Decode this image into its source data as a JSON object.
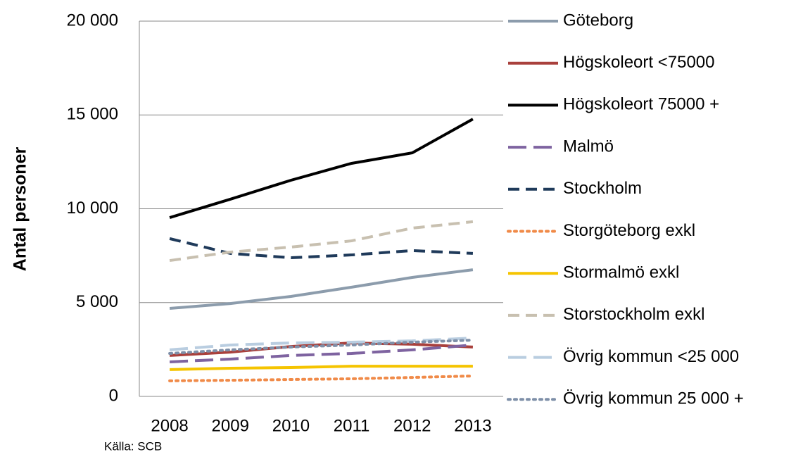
{
  "chart_data": {
    "type": "line",
    "y_axis_label": "Antal personer",
    "source": "Källa: SCB",
    "categories": [
      "2008",
      "2009",
      "2010",
      "2011",
      "2012",
      "2013"
    ],
    "ylim": [
      0,
      20000
    ],
    "yticks": [
      0,
      {
        "value": 5000,
        "label": "5 000"
      },
      {
        "value": 10000,
        "label": "10 000"
      },
      {
        "value": 15000,
        "label": "15 000"
      },
      {
        "value": 20000,
        "label": "20 000"
      }
    ],
    "grid": true,
    "legend": "right",
    "series": [
      {
        "name": "Göteborg",
        "color": "#8c9cac",
        "dash": "solid",
        "values": [
          4690,
          4950,
          5330,
          5820,
          6340,
          6750
        ]
      },
      {
        "name": "Högskoleort <75000",
        "color": "#a9403c",
        "dash": "solid",
        "values": [
          2180,
          2360,
          2660,
          2850,
          2780,
          2630
        ]
      },
      {
        "name": "Högskoleort 75000 +",
        "color": "#000000",
        "dash": "solid",
        "values": [
          9530,
          10510,
          11520,
          12420,
          12980,
          14780
        ]
      },
      {
        "name": "Malmö",
        "color": "#7e63a0",
        "dash": "longdash",
        "values": [
          1840,
          1990,
          2180,
          2290,
          2480,
          2740
        ]
      },
      {
        "name": "Stockholm",
        "color": "#1f3a5a",
        "dash": "dash",
        "values": [
          8410,
          7620,
          7390,
          7540,
          7770,
          7620
        ]
      },
      {
        "name": "Storgöteborg exkl",
        "color": "#f08a48",
        "dash": "dot",
        "values": [
          830,
          860,
          900,
          940,
          1010,
          1090
        ]
      },
      {
        "name": "Stormalmö exkl",
        "color": "#f5c400",
        "dash": "solid",
        "values": [
          1430,
          1500,
          1540,
          1610,
          1610,
          1610
        ]
      },
      {
        "name": "Storstockholm exkl",
        "color": "#c8c0b0",
        "dash": "dash",
        "values": [
          7240,
          7690,
          7960,
          8290,
          8970,
          9310
        ]
      },
      {
        "name": "Övrig kommun <25 000",
        "color": "#b9cde0",
        "dash": "longdash",
        "values": [
          2480,
          2740,
          2850,
          2890,
          2960,
          3110
        ]
      },
      {
        "name": "Övrig kommun 25 000 +",
        "color": "#7e8fa8",
        "dash": "dot",
        "values": [
          2290,
          2480,
          2630,
          2740,
          2890,
          3000
        ]
      }
    ]
  }
}
